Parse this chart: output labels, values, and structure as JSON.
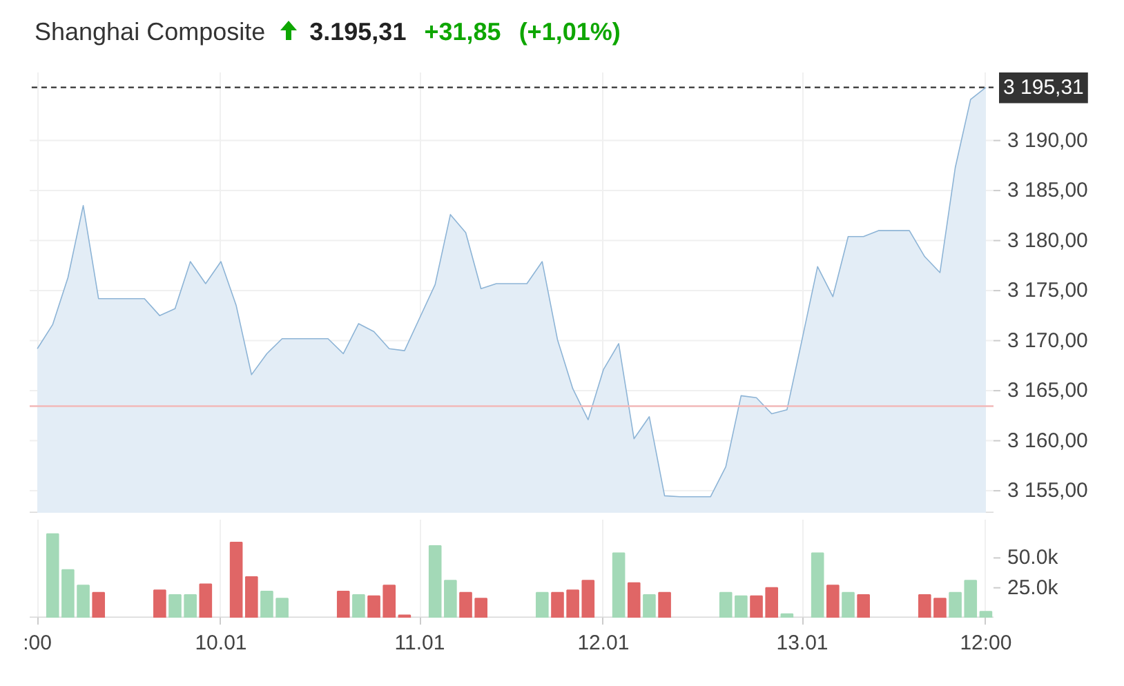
{
  "chart_data": [
    {
      "type": "area",
      "title": "Shanghai Composite",
      "annotations": [
        "3.195,31",
        "+31,85",
        "(+1,01%)"
      ],
      "series": [
        {
          "color": "#8db4d6",
          "values": [
            3169.2,
            3171.6,
            3176.3,
            3183.5,
            3174.2,
            3174.2,
            3174.2,
            3174.2,
            3172.5,
            3173.2,
            3177.9,
            3175.7,
            3177.9,
            3173.5,
            3166.6,
            3168.7,
            3170.2,
            3170.2,
            3170.2,
            3170.2,
            3168.7,
            3171.7,
            3170.9,
            3169.2,
            3169.0,
            3172.3,
            3175.6,
            3182.6,
            3180.8,
            3175.2,
            3175.7,
            3175.7,
            3175.7,
            3177.9,
            3170.1,
            3165.2,
            3162.1,
            3167.1,
            3169.7,
            3160.2,
            3162.4,
            3154.5,
            3154.4,
            3154.4,
            3154.4,
            3157.4,
            3164.5,
            3164.3,
            3162.7,
            3163.1,
            3170.2,
            3177.4,
            3174.4,
            3180.4,
            3180.4,
            3181.0,
            3181.0,
            3181.0,
            3178.4,
            3176.8,
            3187.3,
            3194.1,
            3195.31
          ]
        }
      ],
      "ylim": [
        3152.8,
        3196.8
      ],
      "yticks": [
        {
          "value": 3155,
          "label": "3 155,00"
        },
        {
          "value": 3160,
          "label": "3 160,00"
        },
        {
          "value": 3165,
          "label": "3 165,00"
        },
        {
          "value": 3170,
          "label": "3 170,00"
        },
        {
          "value": 3175,
          "label": "3 175,00"
        },
        {
          "value": 3180,
          "label": "3 180,00"
        },
        {
          "value": 3185,
          "label": "3 185,00"
        },
        {
          "value": 3190,
          "label": "3 190,00"
        }
      ],
      "ref_lines": [
        {
          "axis": "y",
          "value": 3195.31,
          "label": "3 195,31",
          "color": "#333333",
          "line_style": "dashed"
        },
        {
          "axis": "y",
          "value": 3163.46,
          "color": "#f2b8b8",
          "line_style": "solid"
        }
      ],
      "grid": true,
      "tick_labels": "y"
    },
    {
      "type": "bar",
      "categories": [
        ":00",
        null,
        null,
        null,
        null,
        null,
        null,
        null,
        null,
        null,
        null,
        null,
        "10.01",
        null,
        null,
        null,
        null,
        null,
        null,
        null,
        null,
        null,
        null,
        null,
        null,
        "11.01",
        null,
        null,
        null,
        null,
        null,
        null,
        null,
        null,
        null,
        null,
        null,
        "12.01",
        null,
        null,
        null,
        null,
        null,
        null,
        null,
        null,
        null,
        null,
        null,
        null,
        "13.01",
        null,
        null,
        null,
        null,
        null,
        null,
        null,
        null,
        null,
        null,
        null,
        "12:00"
      ],
      "values": [
        null,
        70000,
        40000,
        27000,
        21000,
        null,
        null,
        null,
        23000,
        19000,
        19000,
        28000,
        null,
        63000,
        34000,
        22000,
        16000,
        null,
        null,
        null,
        22000,
        19000,
        18000,
        27000,
        2000,
        null,
        60000,
        31000,
        21000,
        16000,
        null,
        null,
        null,
        21000,
        21000,
        23000,
        31000,
        null,
        54000,
        29000,
        19000,
        21000,
        null,
        null,
        null,
        21000,
        18000,
        18000,
        25000,
        3000,
        null,
        54000,
        27000,
        21000,
        19000,
        null,
        null,
        null,
        19000,
        16000,
        21000,
        31000,
        5000
      ],
      "colors": [
        null,
        "#a3d9b7",
        "#a3d9b7",
        "#a3d9b7",
        "#e06666",
        null,
        null,
        null,
        "#e06666",
        "#a3d9b7",
        "#a3d9b7",
        "#e06666",
        null,
        "#e06666",
        "#e06666",
        "#a3d9b7",
        "#a3d9b7",
        null,
        null,
        null,
        "#e06666",
        "#a3d9b7",
        "#e06666",
        "#e06666",
        "#e06666",
        null,
        "#a3d9b7",
        "#a3d9b7",
        "#e06666",
        "#e06666",
        null,
        null,
        null,
        "#a3d9b7",
        "#e06666",
        "#e06666",
        "#e06666",
        null,
        "#a3d9b7",
        "#e06666",
        "#a3d9b7",
        "#e06666",
        null,
        null,
        null,
        "#a3d9b7",
        "#a3d9b7",
        "#e06666",
        "#e06666",
        "#a3d9b7",
        null,
        "#a3d9b7",
        "#e06666",
        "#a3d9b7",
        "#e06666",
        null,
        null,
        null,
        "#e06666",
        "#e06666",
        "#a3d9b7",
        "#a3d9b7",
        "#a3d9b7"
      ],
      "ylim": [
        0,
        82000
      ],
      "yticks": [
        {
          "value": 25000,
          "label": "25.0k"
        },
        {
          "value": 50000,
          "label": "50.0k"
        }
      ],
      "grid": "x"
    }
  ]
}
